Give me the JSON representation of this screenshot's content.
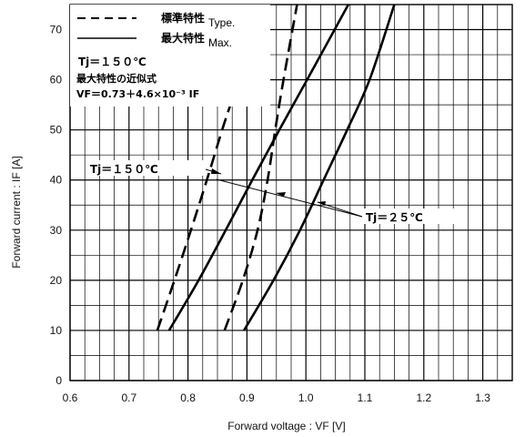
{
  "chart_data": {
    "type": "line",
    "title": "",
    "xlabel": "Forward voltage : VF [V]",
    "ylabel": "Forward current : IF [A]",
    "xlim": [
      0.6,
      1.35
    ],
    "ylim": [
      0,
      75
    ],
    "x_ticks": [
      "0.6",
      "0.7",
      "0.8",
      "0.9",
      "1.0",
      "1.1",
      "1.2",
      "1.3"
    ],
    "y_ticks": [
      "0",
      "10",
      "20",
      "30",
      "40",
      "50",
      "60",
      "70"
    ],
    "grid": true,
    "legend": {
      "position": "top-left",
      "entries": [
        {
          "label": "標準特性",
          "label_en": "Type.",
          "style": "dashed"
        },
        {
          "label": "最大特性",
          "label_en": "Max.",
          "style": "solid"
        }
      ]
    },
    "series": [
      {
        "condition": "Tj=150℃",
        "kind": "typical",
        "style": "dashed",
        "points": [
          [
            0.748,
            10
          ],
          [
            0.777,
            20
          ],
          [
            0.805,
            30
          ],
          [
            0.832,
            40
          ],
          [
            0.858,
            50
          ],
          [
            0.885,
            60
          ],
          [
            0.918,
            75
          ]
        ]
      },
      {
        "condition": "Tj=150℃",
        "kind": "maximum",
        "style": "solid",
        "points": [
          [
            0.768,
            10
          ],
          [
            0.818,
            20
          ],
          [
            0.864,
            30
          ],
          [
            0.909,
            40
          ],
          [
            0.955,
            50
          ],
          [
            1.002,
            60
          ],
          [
            1.072,
            75
          ]
        ]
      },
      {
        "condition": "Tj=25℃",
        "kind": "typical",
        "style": "dashed",
        "points": [
          [
            0.862,
            10
          ],
          [
            0.893,
            20
          ],
          [
            0.918,
            30
          ],
          [
            0.935,
            40
          ],
          [
            0.948,
            50
          ],
          [
            0.962,
            60
          ],
          [
            0.985,
            75
          ]
        ]
      },
      {
        "condition": "Tj=25℃",
        "kind": "maximum",
        "style": "solid",
        "points": [
          [
            0.895,
            10
          ],
          [
            0.945,
            20
          ],
          [
            0.99,
            30
          ],
          [
            1.03,
            40
          ],
          [
            1.07,
            50
          ],
          [
            1.108,
            60
          ],
          [
            1.15,
            75
          ]
        ]
      }
    ],
    "annotations": {
      "tj150_box": "Tj＝１５０℃",
      "formula_title": "最大特性の近似式",
      "formula": "VF＝0.73＋4.6×10⁻³ IF",
      "label_tj150": "Tj＝１５０℃",
      "label_tj25": "Tj＝２５℃"
    },
    "colors": {
      "line": "#000000",
      "grid": "#000000",
      "background": "#ffffff"
    }
  }
}
